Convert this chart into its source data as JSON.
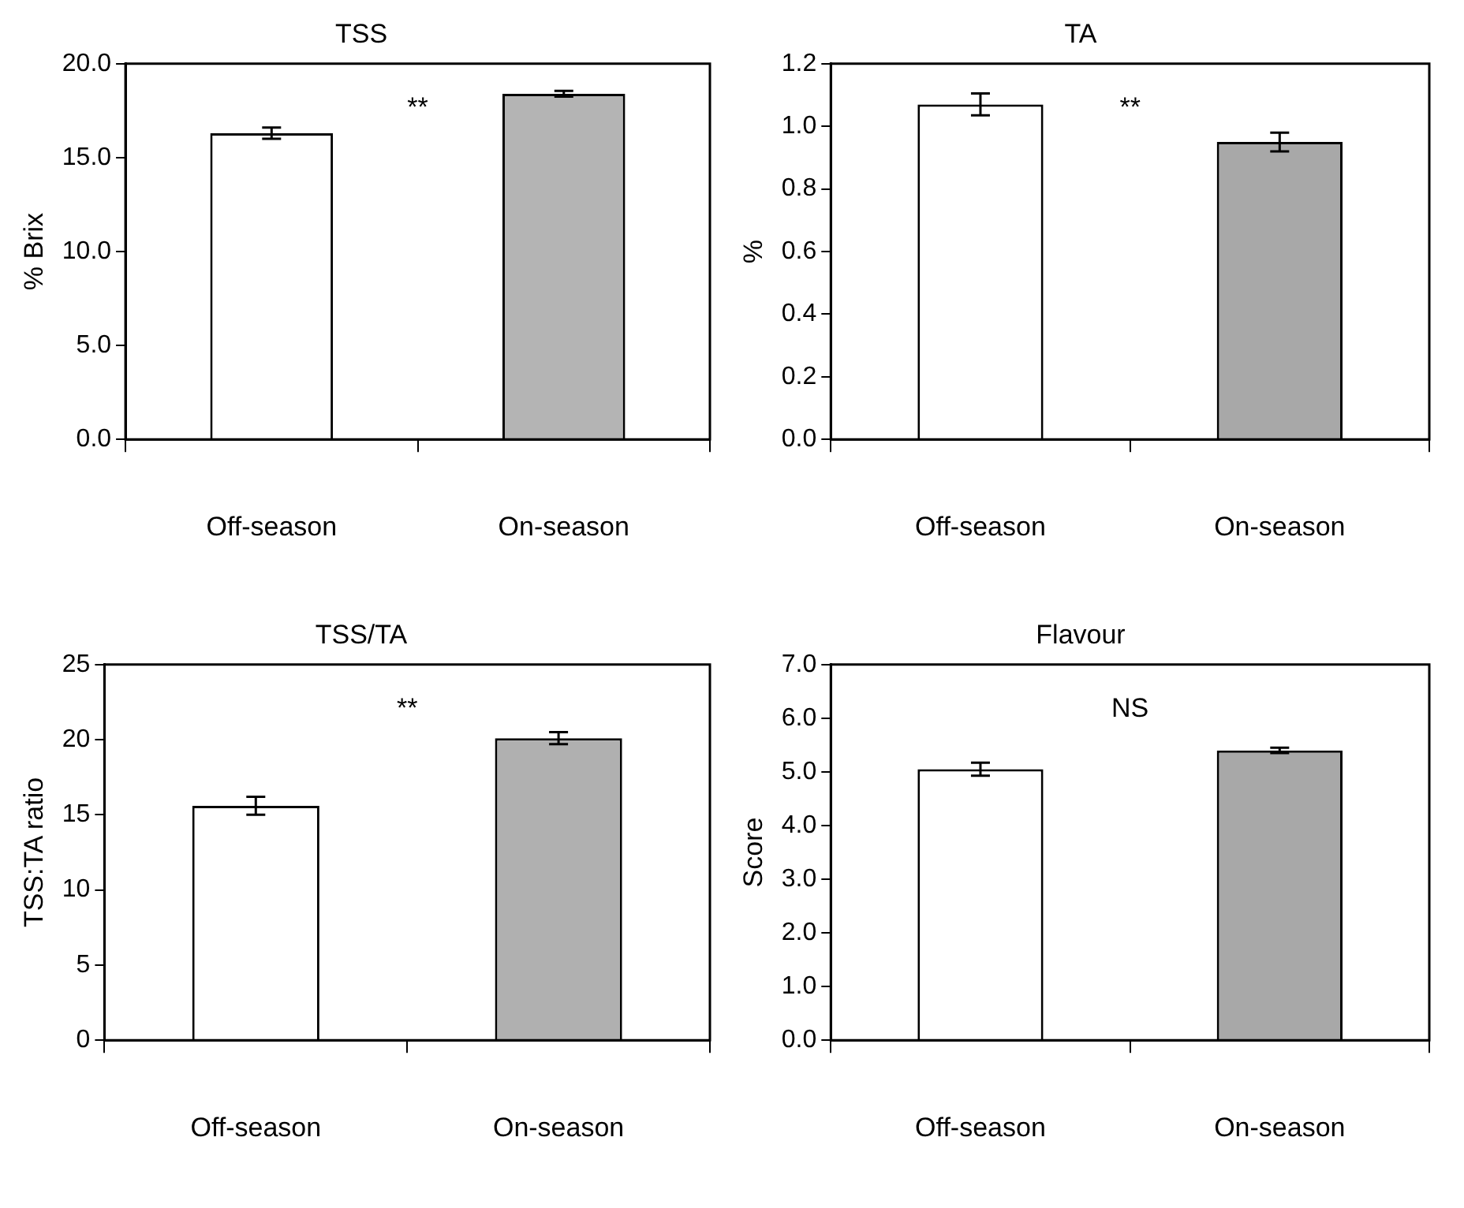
{
  "chart_data": [
    {
      "type": "bar",
      "title": "TSS",
      "ylabel": "% Brix",
      "categories": [
        "Off-season",
        "On-season"
      ],
      "values": [
        16.3,
        18.4
      ],
      "errors": [
        0.3,
        0.15
      ],
      "colors": [
        "#ffffff",
        "#b4b4b4"
      ],
      "ylim": [
        0,
        20
      ],
      "yticks": [
        {
          "value": 0,
          "label": "0.0"
        },
        {
          "value": 5,
          "label": "5.0"
        },
        {
          "value": 10,
          "label": "10.0"
        },
        {
          "value": 15,
          "label": "15.0"
        },
        {
          "value": 20,
          "label": "20.0"
        }
      ],
      "annotations": [
        "**"
      ],
      "grid": false
    },
    {
      "type": "bar",
      "title": "TA",
      "ylabel": "%",
      "categories": [
        "Off-season",
        "On-season"
      ],
      "values": [
        1.07,
        0.95
      ],
      "errors": [
        0.035,
        0.03
      ],
      "colors": [
        "#ffffff",
        "#a8a8a8"
      ],
      "ylim": [
        0,
        1.2
      ],
      "yticks": [
        {
          "value": 0,
          "label": "0.0"
        },
        0.2,
        0.4,
        0.6,
        0.8,
        {
          "value": 1,
          "label": "1.0"
        },
        1.2
      ],
      "annotations": [
        "**"
      ],
      "grid": false
    },
    {
      "type": "bar",
      "title": "TSS/TA",
      "ylabel": "TSS:TA ratio",
      "categories": [
        "Off-season",
        "On-season"
      ],
      "values": [
        15.6,
        20.1
      ],
      "errors": [
        0.6,
        0.4
      ],
      "colors": [
        "#ffffff",
        "#b0b0b0"
      ],
      "ylim": [
        0,
        25
      ],
      "yticks": [
        0,
        5,
        10,
        15,
        20,
        25
      ],
      "annotations": [
        "**"
      ],
      "grid": false
    },
    {
      "type": "bar",
      "title": "Flavour",
      "ylabel": "Score",
      "categories": [
        "Off-season",
        "On-season"
      ],
      "values": [
        5.05,
        5.4
      ],
      "errors": [
        0.12,
        0.05
      ],
      "colors": [
        "#ffffff",
        "#a8a8a8"
      ],
      "ylim": [
        0,
        7
      ],
      "yticks": [
        {
          "value": 0,
          "label": "0.0"
        },
        {
          "value": 1,
          "label": "1.0"
        },
        {
          "value": 2,
          "label": "2.0"
        },
        {
          "value": 3,
          "label": "3.0"
        },
        {
          "value": 4,
          "label": "4.0"
        },
        {
          "value": 5,
          "label": "5.0"
        },
        {
          "value": 6,
          "label": "6.0"
        },
        {
          "value": 7,
          "label": "7.0"
        }
      ],
      "annotations": [
        "NS"
      ],
      "grid": false
    }
  ]
}
